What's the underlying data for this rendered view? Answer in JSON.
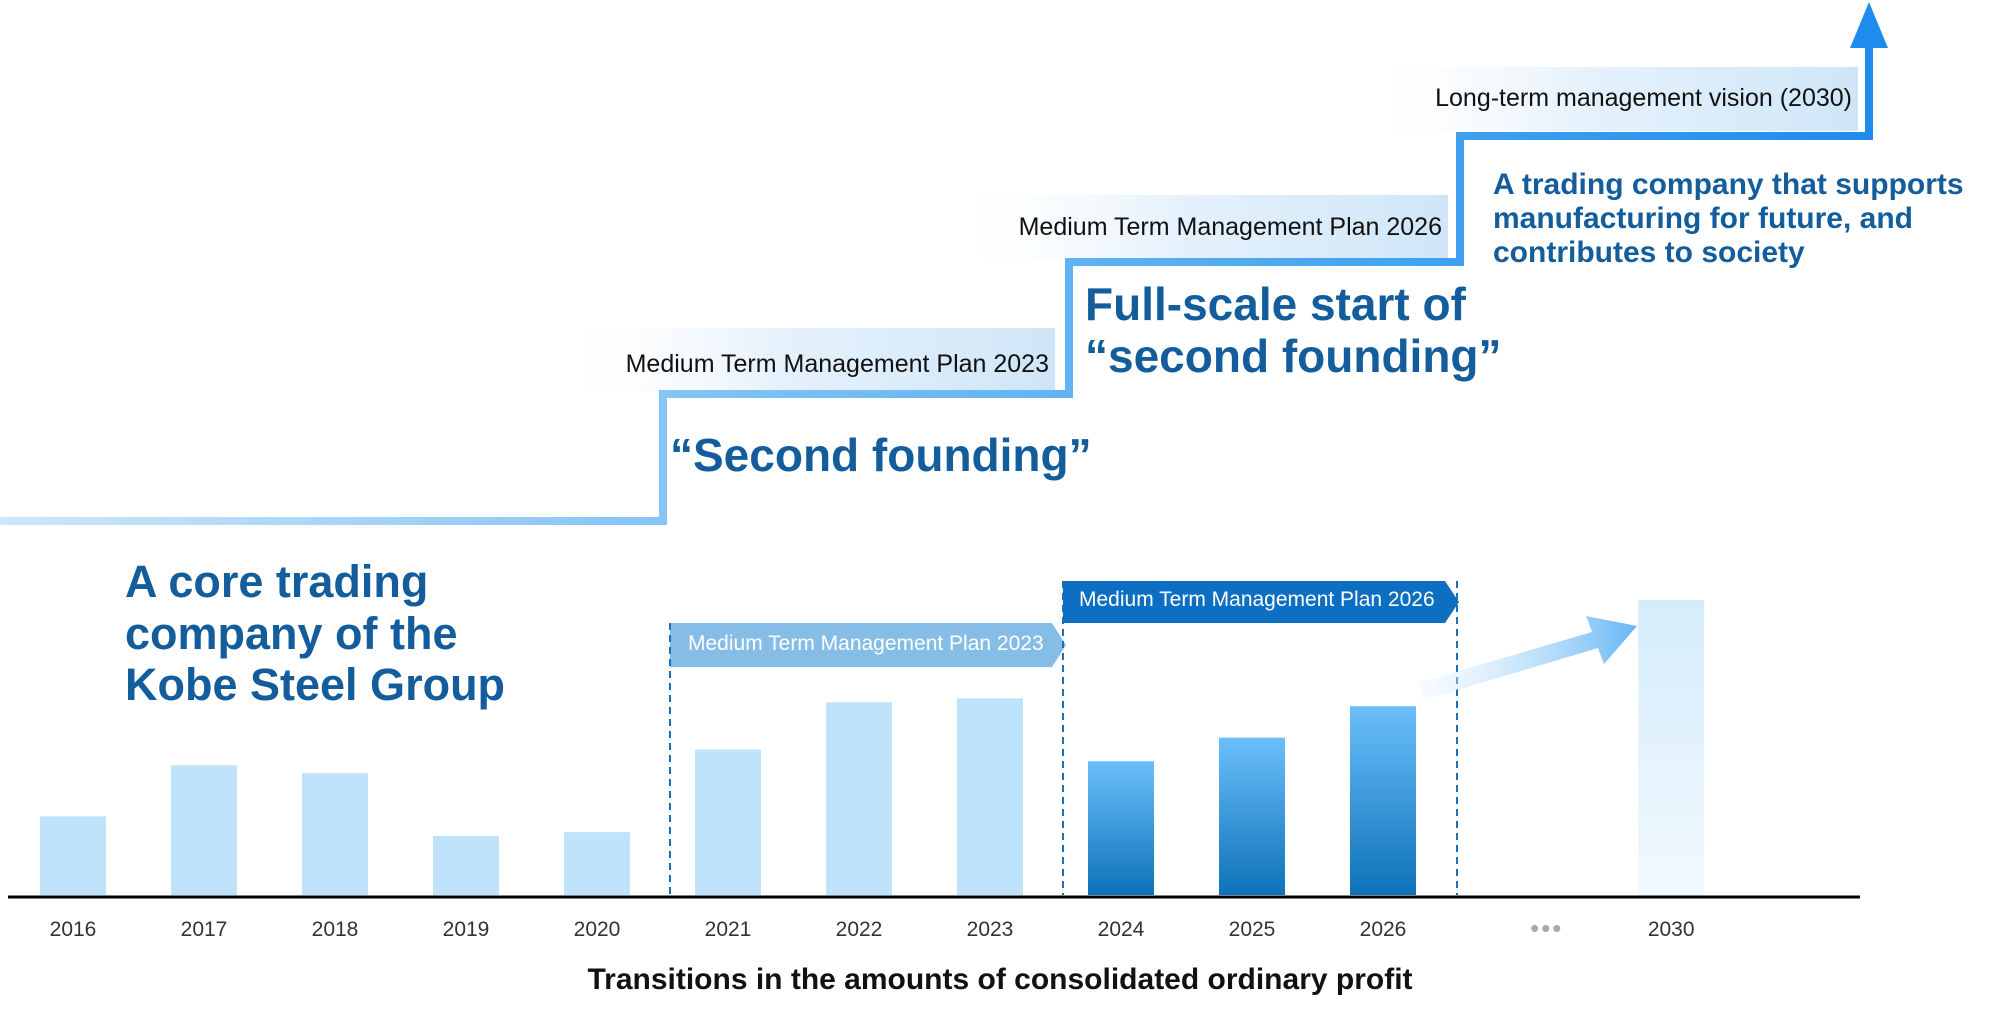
{
  "chart_data": {
    "type": "bar",
    "title": "Transitions in the amounts of consolidated ordinary profit",
    "categories": [
      "2016",
      "2017",
      "2018",
      "2019",
      "2020",
      "2021",
      "2022",
      "2023",
      "2024",
      "2025",
      "2026",
      "2030"
    ],
    "values": [
      20,
      33,
      31,
      15,
      16,
      37,
      49,
      50,
      34,
      40,
      48,
      75
    ],
    "value_scale": "relative (no axis values shown)",
    "ellipsis_label": "•••",
    "colors": {
      "past_bar": "#bfe3fb",
      "plan_bar_top": "#6bbffb",
      "plan_bar_bottom": "#0d72b8",
      "target_bar_top": "#d4ecfc",
      "target_bar_bottom": "#f2f9fe",
      "heading_blue": "#135d9c",
      "stair_blue": "#2693ee",
      "axis": "#000000"
    },
    "plan_headers": [
      {
        "label": "Medium Term Management Plan 2023",
        "years": [
          "2021",
          "2022",
          "2023"
        ]
      },
      {
        "label": "Medium Term Management Plan 2026",
        "years": [
          "2024",
          "2025",
          "2026"
        ]
      }
    ]
  },
  "staircase": {
    "steps": [
      {
        "label": "Medium Term Management Plan 2023"
      },
      {
        "label": "Medium Term Management Plan 2026"
      },
      {
        "label": "Long-term management vision (2030)"
      }
    ]
  },
  "headings": {
    "core": [
      "A core trading",
      "company of the",
      "Kobe Steel Group"
    ],
    "second_founding": "“Second founding”",
    "full_scale": [
      "Full-scale start of",
      "“second founding”"
    ],
    "vision": [
      "A trading company that supports",
      "manufacturing for future, and",
      "contributes to society"
    ]
  }
}
